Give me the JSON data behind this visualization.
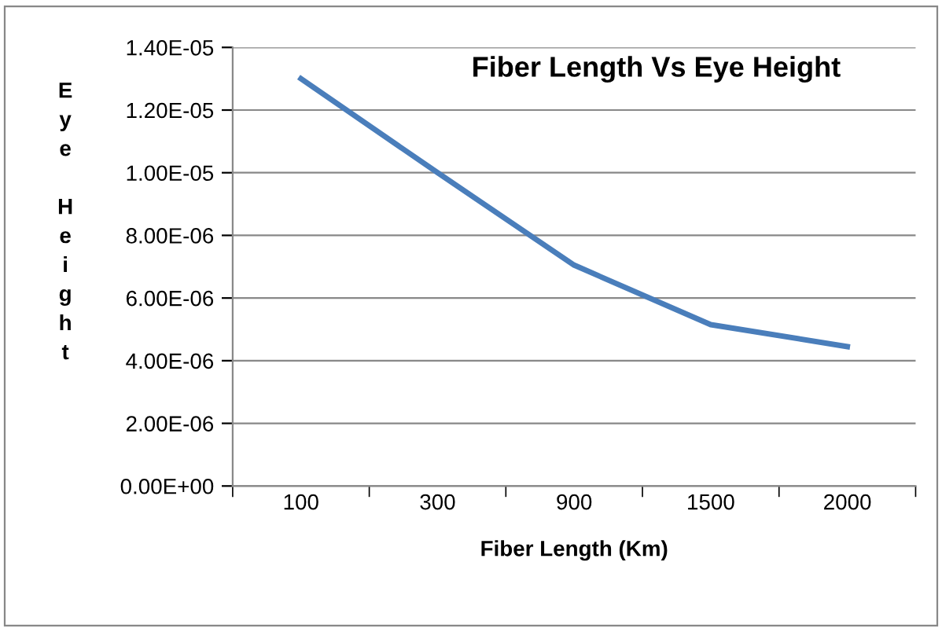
{
  "chart_data": {
    "type": "line",
    "title": "Fiber Length Vs Eye Height",
    "xlabel": "Fiber Length (Km)",
    "ylabel": "Eye Height",
    "categories": [
      "100",
      "300",
      "900",
      "1500",
      "2000"
    ],
    "series": [
      {
        "color": "#4a7ebb",
        "values": [
          1.3e-05,
          1e-05,
          7.05e-06,
          5.15e-06,
          4.45e-06
        ]
      }
    ],
    "ylim": [
      0,
      1.4e-05
    ],
    "yticks": [
      {
        "value": 0,
        "label": "0.00E+00"
      },
      {
        "value": 2e-06,
        "label": "2.00E-06"
      },
      {
        "value": 4e-06,
        "label": "4.00E-06"
      },
      {
        "value": 6e-06,
        "label": "6.00E-06"
      },
      {
        "value": 8e-06,
        "label": "8.00E-06"
      },
      {
        "value": 1e-05,
        "label": "1.00E-05"
      },
      {
        "value": 1.2e-05,
        "label": "1.20E-05"
      },
      {
        "value": 1.4e-05,
        "label": "1.40E-05"
      }
    ],
    "grid": "y",
    "marker": "none",
    "line_style": "solid",
    "legend": false
  }
}
